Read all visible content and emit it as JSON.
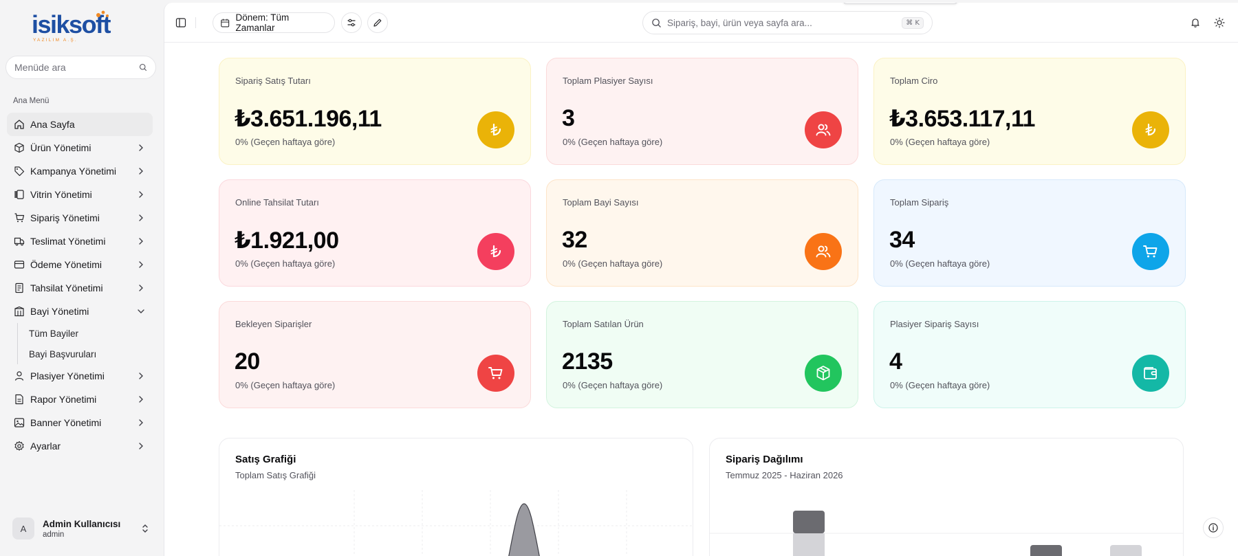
{
  "colors": {
    "accent_yellow": "#eab308",
    "accent_red": "#ef4444",
    "accent_rose": "#f43f5e",
    "accent_orange": "#f97316",
    "accent_blue": "#0ea5e9",
    "accent_green": "#22c55e",
    "accent_teal": "#14b8a6"
  },
  "brand": {
    "logo_text": "isiksoft",
    "logo_sub": "YAZILIM A.Ş."
  },
  "sidebar": {
    "search_placeholder": "Menüde ara",
    "section_label": "Ana Menü",
    "items": [
      {
        "label": "Ana Sayfa",
        "icon": "home-icon",
        "active": true
      },
      {
        "label": "Ürün Yönetimi",
        "icon": "box-icon"
      },
      {
        "label": "Kampanya Yönetimi",
        "icon": "tag-icon"
      },
      {
        "label": "Vitrin Yönetimi",
        "icon": "gallery-icon"
      },
      {
        "label": "Sipariş Yönetimi",
        "icon": "cart-icon"
      },
      {
        "label": "Teslimat Yönetimi",
        "icon": "truck-icon"
      },
      {
        "label": "Ödeme Yönetimi",
        "icon": "card-icon"
      },
      {
        "label": "Tahsilat Yönetimi",
        "icon": "receipt-icon"
      },
      {
        "label": "Bayi Yönetimi",
        "icon": "building-icon",
        "expanded": true,
        "children": [
          {
            "label": "Tüm Bayiler"
          },
          {
            "label": "Bayi Başvuruları"
          }
        ]
      },
      {
        "label": "Plasiyer Yönetimi",
        "icon": "user-icon"
      },
      {
        "label": "Rapor Yönetimi",
        "icon": "report-icon"
      },
      {
        "label": "Banner Yönetimi",
        "icon": "image-icon"
      },
      {
        "label": "Ayarlar",
        "icon": "gear-icon"
      }
    ],
    "user": {
      "initial": "A",
      "name": "Admin Kullanıcısı",
      "role": "admin"
    }
  },
  "topbar": {
    "period_label": "Dönem: Tüm Zamanlar",
    "search_placeholder": "Sipariş, bayi, ürün veya sayfa ara...",
    "shortcut": "⌘ K"
  },
  "stats": [
    {
      "title": "Sipariş Satış Tutarı",
      "value": "₺3.651.196,11",
      "delta": "0% (Geçen haftaya göre)",
      "icon": "lira-icon",
      "bg": "#fefce8",
      "border": "#fbf2c4",
      "badge": "#eab308"
    },
    {
      "title": "Toplam Plasiyer Sayısı",
      "value": "3",
      "delta": "0% (Geçen haftaya göre)",
      "icon": "users-icon",
      "bg": "#fef2f2",
      "border": "#fbdada",
      "badge": "#ef4444"
    },
    {
      "title": "Toplam Ciro",
      "value": "₺3.653.117,11",
      "delta": "0% (Geçen haftaya göre)",
      "icon": "lira-icon",
      "bg": "#fefce8",
      "border": "#fbf2c4",
      "badge": "#eab308"
    },
    {
      "title": "Online Tahsilat Tutarı",
      "value": "₺1.921,00",
      "delta": "0% (Geçen haftaya göre)",
      "icon": "lira-icon",
      "bg": "#fff1f2",
      "border": "#fbd8dd",
      "badge": "#f43f5e"
    },
    {
      "title": "Toplam Bayi Sayısı",
      "value": "32",
      "delta": "0% (Geçen haftaya göre)",
      "icon": "users-icon",
      "bg": "#fff7ed",
      "border": "#fde4c8",
      "badge": "#f97316"
    },
    {
      "title": "Toplam Sipariş",
      "value": "34",
      "delta": "0% (Geçen haftaya göre)",
      "icon": "cart-icon",
      "bg": "#f0f7ff",
      "border": "#d6e9fb",
      "badge": "#0ea5e9"
    },
    {
      "title": "Bekleyen Siparişler",
      "value": "20",
      "delta": "0% (Geçen haftaya göre)",
      "icon": "cart-icon",
      "bg": "#fef2f2",
      "border": "#fbdada",
      "badge": "#ef4444"
    },
    {
      "title": "Toplam Satılan Ürün",
      "value": "2135",
      "delta": "0% (Geçen haftaya göre)",
      "icon": "package-icon",
      "bg": "#f0fdf4",
      "border": "#d3f3de",
      "badge": "#22c55e"
    },
    {
      "title": "Plasiyer Sipariş Sayısı",
      "value": "4",
      "delta": "0% (Geçen haftaya göre)",
      "icon": "wallet-icon",
      "bg": "#f0fdfa",
      "border": "#cdf3ea",
      "badge": "#14b8a6"
    }
  ],
  "charts": {
    "sales": {
      "title": "Satış Grafiği",
      "subtitle": "Toplam Satış Grafiği"
    },
    "orders": {
      "title": "Sipariş Dağılımı",
      "subtitle": "Temmuz 2025 - Haziran 2026"
    }
  }
}
